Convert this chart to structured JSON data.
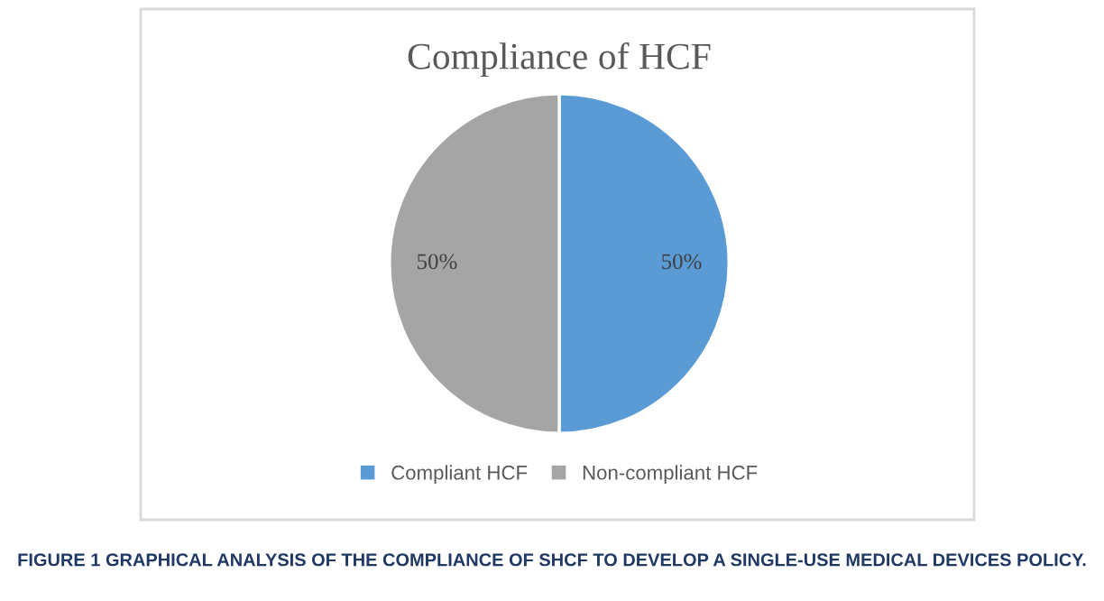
{
  "chart_data": {
    "type": "pie",
    "title": "Compliance of HCF",
    "categories": [
      "Compliant HCF",
      "Non-compliant HCF"
    ],
    "values": [
      50,
      50
    ],
    "colors": [
      "#5b9bd5",
      "#a5a5a5"
    ],
    "value_labels": [
      "50%",
      "50%"
    ],
    "legend": "bottom",
    "annotations": [
      "FIGURE 1 GRAPHICAL ANALYSIS OF THE COMPLIANCE OF SHCF TO DEVELOP A SINGLE-USE MEDICAL DEVICES POLICY."
    ]
  }
}
